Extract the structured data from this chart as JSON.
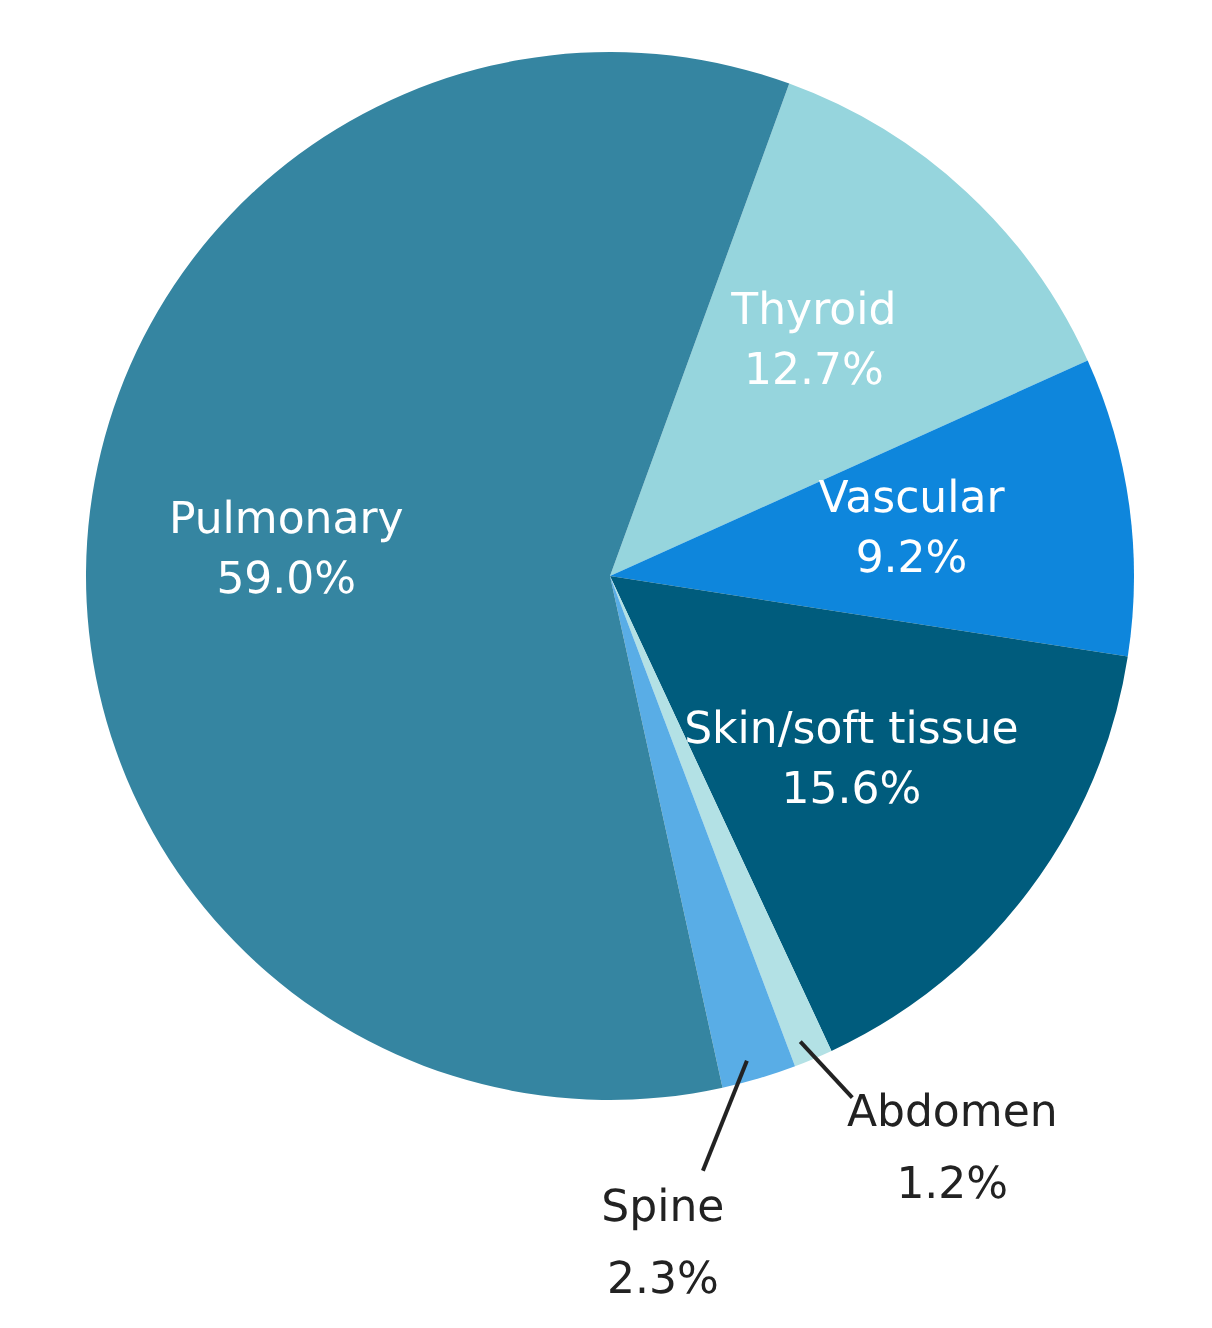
{
  "chart_data": {
    "type": "pie",
    "categories": [
      "Thyroid",
      "Vascular",
      "Skin/soft tissue",
      "Abdomen",
      "Spine",
      "Pulmonary"
    ],
    "values": [
      12.7,
      9.2,
      15.6,
      1.2,
      2.3,
      59.0
    ],
    "value_labels": [
      "12.7%",
      "9.2%",
      "15.6%",
      "1.2%",
      "2.3%",
      "59.0%"
    ],
    "colors": [
      "#96d5dd",
      "#0e86dc",
      "#005c7d",
      "#b3e1e5",
      "#59ade6",
      "#3585a1"
    ],
    "legend": false
  }
}
